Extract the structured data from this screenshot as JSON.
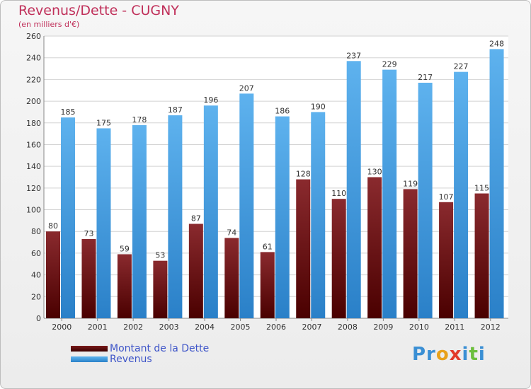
{
  "chart_data": {
    "type": "bar",
    "title": "Revenus/Dette - CUGNY",
    "subtitle": "(en milliers d'€)",
    "categories": [
      "2000",
      "2001",
      "2002",
      "2003",
      "2004",
      "2005",
      "2006",
      "2007",
      "2008",
      "2009",
      "2010",
      "2011",
      "2012"
    ],
    "series": [
      {
        "name": "Montant de la Dette",
        "color": "#7a1a1a",
        "values": [
          80,
          73,
          59,
          53,
          87,
          74,
          61,
          128,
          110,
          130,
          119,
          107,
          115
        ]
      },
      {
        "name": "Revenus",
        "color": "#4aa3e4",
        "values": [
          185,
          175,
          178,
          187,
          196,
          207,
          186,
          190,
          237,
          229,
          217,
          227,
          248
        ]
      }
    ],
    "ylim": [
      0,
      260
    ],
    "yticks": [
      0,
      20,
      40,
      60,
      80,
      100,
      120,
      140,
      160,
      180,
      200,
      220,
      240,
      260
    ],
    "grid": true
  },
  "brand": {
    "parts": [
      "Pr",
      "o",
      "x",
      "i",
      "t",
      "i"
    ],
    "colors": [
      "#3a8fd4",
      "#e8a11a",
      "#e23a2a",
      "#3a8fd4",
      "#6cbf3c",
      "#3a8fd4"
    ]
  }
}
